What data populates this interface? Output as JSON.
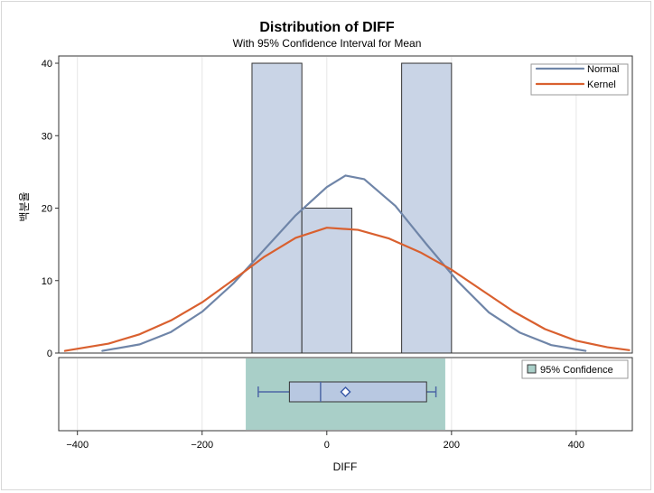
{
  "chart_data": {
    "type": "bar",
    "title": "Distribution of DIFF",
    "subtitle": "With 95% Confidence Interval for Mean",
    "xlabel": "DIFF",
    "ylabel": "백분율",
    "xlim": [
      -430,
      490
    ],
    "ylim": [
      0,
      41
    ],
    "x_ticks": [
      -400,
      -200,
      0,
      200,
      400
    ],
    "x_tick_labels": [
      "−400",
      "−200",
      "0",
      "200",
      "400"
    ],
    "y_ticks": [
      0,
      10,
      20,
      30,
      40
    ],
    "y_tick_labels": [
      "0",
      "10",
      "20",
      "30",
      "40"
    ],
    "grid": "vertical",
    "histogram": {
      "bins": [
        {
          "x0": -120,
          "x1": -40,
          "value": 40
        },
        {
          "x0": -40,
          "x1": 40,
          "value": 20
        },
        {
          "x0": 120,
          "x1": 200,
          "value": 40
        }
      ],
      "fill": "#c9d4e6",
      "stroke": "#333333"
    },
    "series": [
      {
        "name": "Normal",
        "type": "line",
        "color": "#6f85a8",
        "x": [
          -360,
          -300,
          -250,
          -200,
          -150,
          -100,
          -50,
          0,
          30,
          60,
          110,
          160,
          210,
          260,
          310,
          360,
          415
        ],
        "y": [
          0.3,
          1.2,
          2.9,
          5.7,
          9.6,
          14.3,
          19.0,
          22.9,
          24.5,
          24.0,
          20.3,
          15.0,
          9.9,
          5.6,
          2.8,
          1.1,
          0.3
        ]
      },
      {
        "name": "Kernel",
        "type": "line",
        "color": "#d9602f",
        "x": [
          -420,
          -350,
          -300,
          -250,
          -200,
          -150,
          -100,
          -50,
          0,
          50,
          100,
          150,
          200,
          250,
          300,
          350,
          400,
          450,
          485
        ],
        "y": [
          0.3,
          1.3,
          2.6,
          4.5,
          7.0,
          10.1,
          13.3,
          15.9,
          17.3,
          17.0,
          15.8,
          13.9,
          11.5,
          8.6,
          5.7,
          3.3,
          1.7,
          0.8,
          0.4
        ]
      }
    ],
    "legend": {
      "position": "top-right",
      "entries": [
        "Normal",
        "Kernel"
      ]
    },
    "boxplot": {
      "confidence_label": "95% Confidence",
      "confidence_interval": [
        -130,
        190
      ],
      "confidence_color": "#a9cfc8",
      "box_color": "#b8c8e1",
      "whisker_low": -110,
      "q1": -60,
      "median": -10,
      "mean": 30,
      "q3": 160,
      "whisker_high": 175,
      "legend_position": "top-right"
    }
  }
}
